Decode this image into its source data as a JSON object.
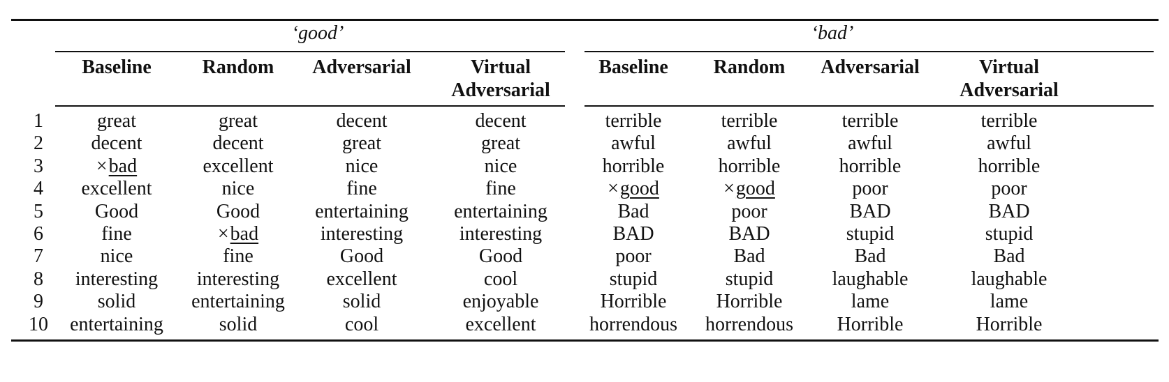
{
  "table": {
    "groups": [
      {
        "title": "‘good’",
        "columns": [
          "Baseline",
          "Random",
          "Adversarial",
          "Virtual Adversarial"
        ]
      },
      {
        "title": "‘bad’",
        "columns": [
          "Baseline",
          "Random",
          "Adversarial",
          "Virtual Adversarial"
        ]
      }
    ],
    "column_header_lines": [
      [
        "Baseline"
      ],
      [
        "Random"
      ],
      [
        "Adversarial"
      ],
      [
        "Virtual",
        "Adversarial"
      ],
      [
        "Baseline"
      ],
      [
        "Random"
      ],
      [
        "Adversarial"
      ],
      [
        "Virtual",
        "Adversarial"
      ]
    ],
    "row_labels": [
      "1",
      "2",
      "3",
      "4",
      "5",
      "6",
      "7",
      "8",
      "9",
      "10"
    ],
    "rows": [
      [
        "great",
        "great",
        "decent",
        "decent",
        "terrible",
        "terrible",
        "terrible",
        "terrible"
      ],
      [
        "decent",
        "decent",
        "great",
        "great",
        "awful",
        "awful",
        "awful",
        "awful"
      ],
      [
        "×bad",
        "excellent",
        "nice",
        "nice",
        "horrible",
        "horrible",
        "horrible",
        "horrible"
      ],
      [
        "excellent",
        "nice",
        "fine",
        "fine",
        "×good",
        "×good",
        "poor",
        "poor"
      ],
      [
        "Good",
        "Good",
        "entertaining",
        "entertaining",
        "Bad",
        "poor",
        "BAD",
        "BAD"
      ],
      [
        "fine",
        "×bad",
        "interesting",
        "interesting",
        "BAD",
        "BAD",
        "stupid",
        "stupid"
      ],
      [
        "nice",
        "fine",
        "Good",
        "Good",
        "poor",
        "Bad",
        "Bad",
        "Bad"
      ],
      [
        "interesting",
        "interesting",
        "excellent",
        "cool",
        "stupid",
        "stupid",
        "laughable",
        "laughable"
      ],
      [
        "solid",
        "entertaining",
        "solid",
        "enjoyable",
        "Horrible",
        "Horrible",
        "lame",
        "lame"
      ],
      [
        "entertaining",
        "solid",
        "cool",
        "excellent",
        "horrendous",
        "horrendous",
        "Horrible",
        "Horrible"
      ]
    ]
  }
}
